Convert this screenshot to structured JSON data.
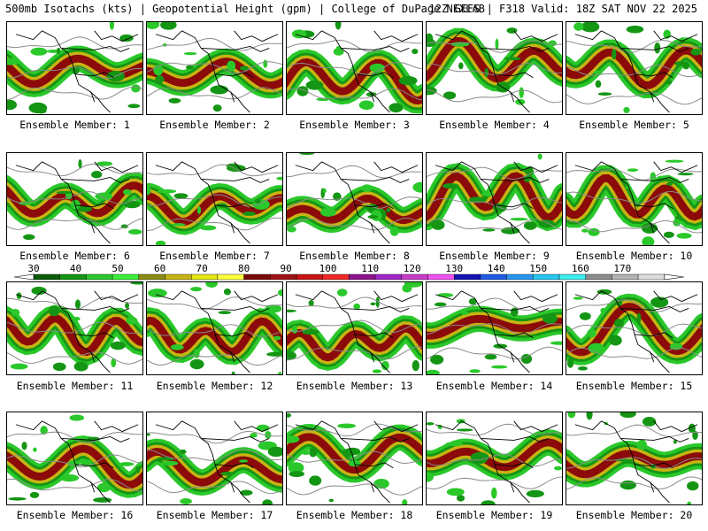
{
  "header": {
    "left": "500mb Isotachs (kts) | Geopotential Height (gpm) | College of DuPage NEXLAB",
    "right": "12Z GEFS | F318 Valid: 18Z SAT NOV 22 2025"
  },
  "colorbar": {
    "labels": [
      "30",
      "40",
      "50",
      "60",
      "70",
      "80",
      "90",
      "100",
      "110",
      "120",
      "130",
      "140",
      "150",
      "160",
      "170"
    ],
    "colors": [
      "#0a5c0a",
      "#149614",
      "#2ac82a",
      "#3cf03c",
      "#8c8c14",
      "#c8b414",
      "#e6e614",
      "#ffff3c",
      "#7a0a0a",
      "#a01414",
      "#c81414",
      "#f02828",
      "#8c148c",
      "#a028c8",
      "#c83cc8",
      "#f050f0",
      "#1414b4",
      "#1e5ae6",
      "#2896f0",
      "#28c8f0",
      "#3cf0f0",
      "#8c8c8c",
      "#b4b4b4",
      "#dcdcdc"
    ]
  },
  "panels": [
    {
      "caption": "Ensemble Member: 1"
    },
    {
      "caption": "Ensemble Member: 2"
    },
    {
      "caption": "Ensemble Member: 3"
    },
    {
      "caption": "Ensemble Member: 4"
    },
    {
      "caption": "Ensemble Member: 5"
    },
    {
      "caption": "Ensemble Member: 6"
    },
    {
      "caption": "Ensemble Member: 7"
    },
    {
      "caption": "Ensemble Member: 8"
    },
    {
      "caption": "Ensemble Member: 9"
    },
    {
      "caption": "Ensemble Member: 10"
    },
    {
      "caption": "Ensemble Member: 11"
    },
    {
      "caption": "Ensemble Member: 12"
    },
    {
      "caption": "Ensemble Member: 13"
    },
    {
      "caption": "Ensemble Member: 14"
    },
    {
      "caption": "Ensemble Member: 15"
    },
    {
      "caption": "Ensemble Member: 16"
    },
    {
      "caption": "Ensemble Member: 17"
    },
    {
      "caption": "Ensemble Member: 18"
    },
    {
      "caption": "Ensemble Member: 19"
    },
    {
      "caption": "Ensemble Member: 20"
    }
  ]
}
